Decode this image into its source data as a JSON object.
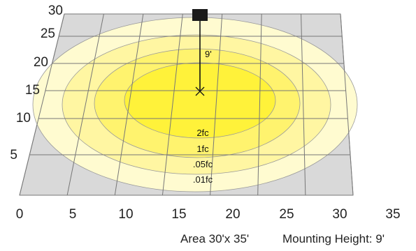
{
  "grid": {
    "x_ticks": [
      "0",
      "5",
      "10",
      "15",
      "20",
      "25",
      "30",
      "35"
    ],
    "y_ticks": [
      "30",
      "25",
      "20",
      "15",
      "10",
      "5"
    ]
  },
  "fixture": {
    "height_label": "9'",
    "marker_icon": "fixture-square-icon",
    "center_icon": "center-cross-icon"
  },
  "contours": [
    {
      "label": "2fc",
      "color": "#fff23a"
    },
    {
      "label": "1fc",
      "color": "#fff36e"
    },
    {
      "label": ".05fc",
      "color": "#fff6a2"
    },
    {
      "label": ".01fc",
      "color": "#fffbd0"
    }
  ],
  "colors": {
    "background_plane": "#d9d9d9",
    "grid_line": "#777777"
  },
  "caption": {
    "area": "Area 30'x 35'",
    "mounting_height": "Mounting Height: 9'"
  }
}
